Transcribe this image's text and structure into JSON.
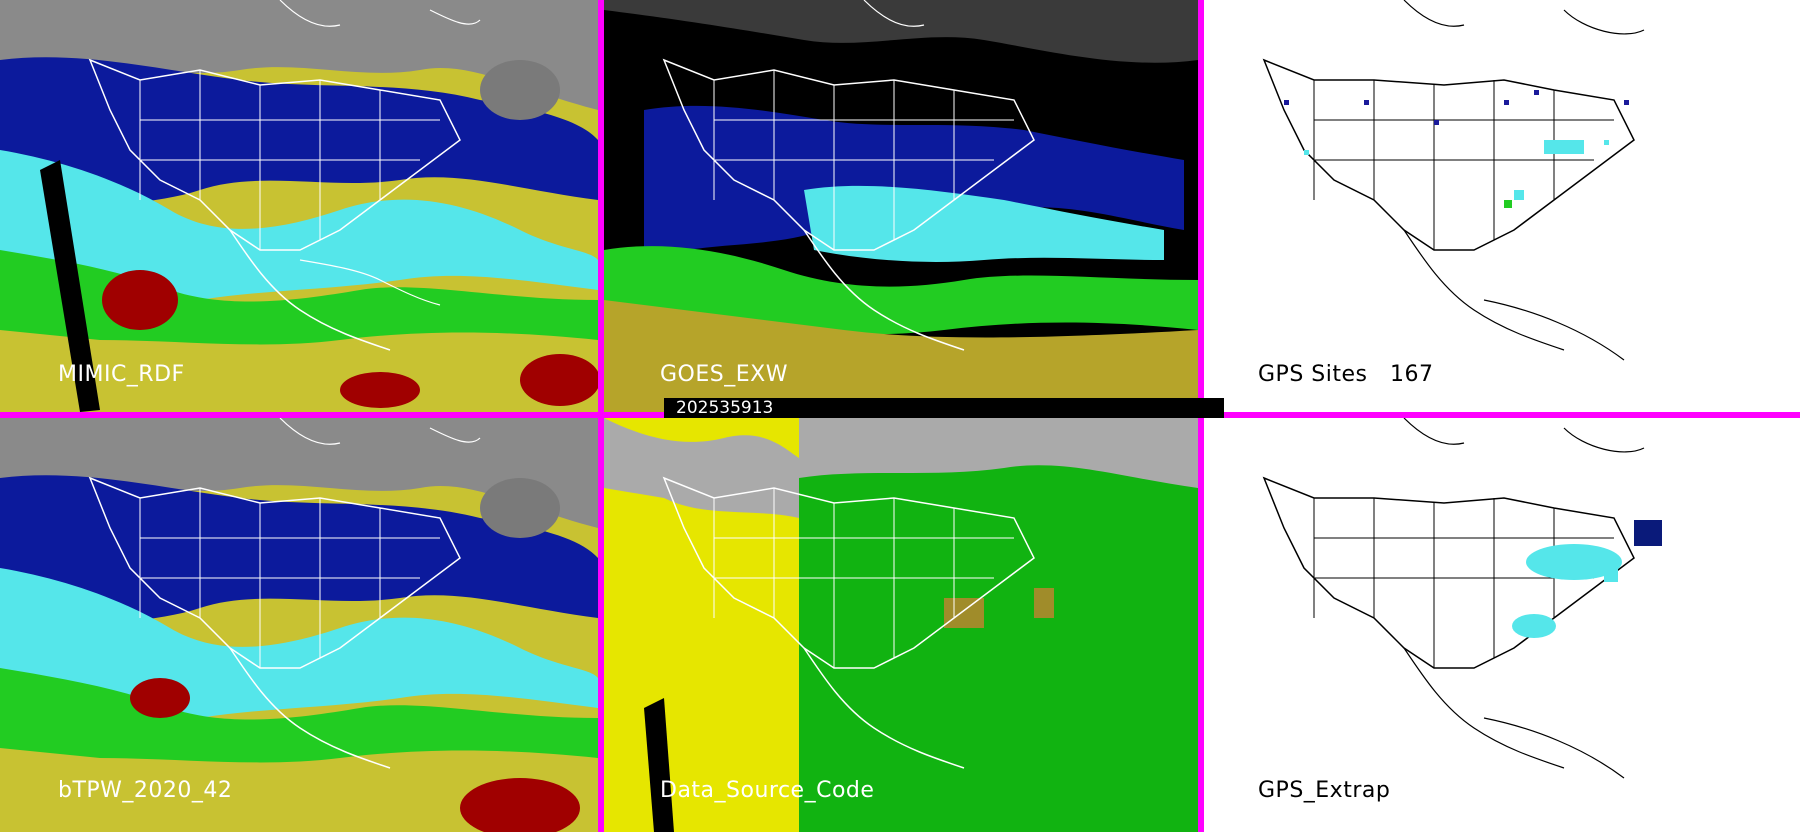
{
  "panels": [
    {
      "id": "p1",
      "label": "MIMIC_RDF"
    },
    {
      "id": "p2",
      "label": "GOES_EXW"
    },
    {
      "id": "p3",
      "label": "GPS Sites   167"
    },
    {
      "id": "p4",
      "label": "bTPW_2020_42"
    },
    {
      "id": "p5",
      "label": "Data_Source_Code"
    },
    {
      "id": "p6",
      "label": "GPS_Extrap"
    }
  ],
  "timestamp": "202535913",
  "colors": {
    "frame": "#ff00ff",
    "dry_blue": "#0a1a9a",
    "cyan": "#55e6ea",
    "green": "#22cc22",
    "yellow": "#d8cc22",
    "red": "#a00000",
    "gray": "#9a9a9a",
    "code_yellow": "#e6e600",
    "code_green": "#11b311",
    "code_gray": "#aaaaaa",
    "code_olive": "#a08c2a"
  }
}
